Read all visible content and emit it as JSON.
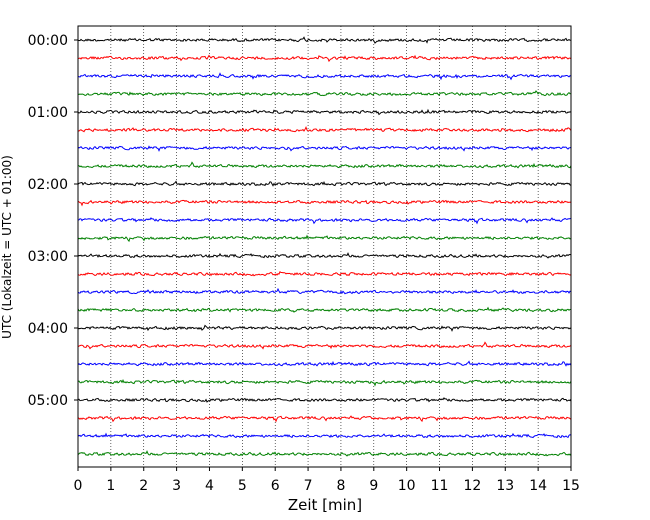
{
  "chart_data": {
    "type": "line",
    "title": "",
    "xlabel": "Zeit  [min]",
    "ylabel": "UTC (Lokalzeit = UTC + 01:00)",
    "xlim": [
      0,
      15
    ],
    "x_ticks": [
      0,
      1,
      2,
      3,
      4,
      5,
      6,
      7,
      8,
      9,
      10,
      11,
      12,
      13,
      14,
      15
    ],
    "x_tick_labels": [
      "0",
      "1",
      "2",
      "3",
      "4",
      "5",
      "6",
      "7",
      "8",
      "9",
      "10",
      "11",
      "12",
      "13",
      "14",
      "15"
    ],
    "y_tick_labels": [
      "00:00",
      "01:00",
      "02:00",
      "03:00",
      "04:00",
      "05:00"
    ],
    "grid": "vertical-dotted",
    "trace_interval_min": 15,
    "trace_colors": [
      "#000000",
      "#ff0000",
      "#0000ff",
      "#008000"
    ],
    "trace_count": 24
  }
}
